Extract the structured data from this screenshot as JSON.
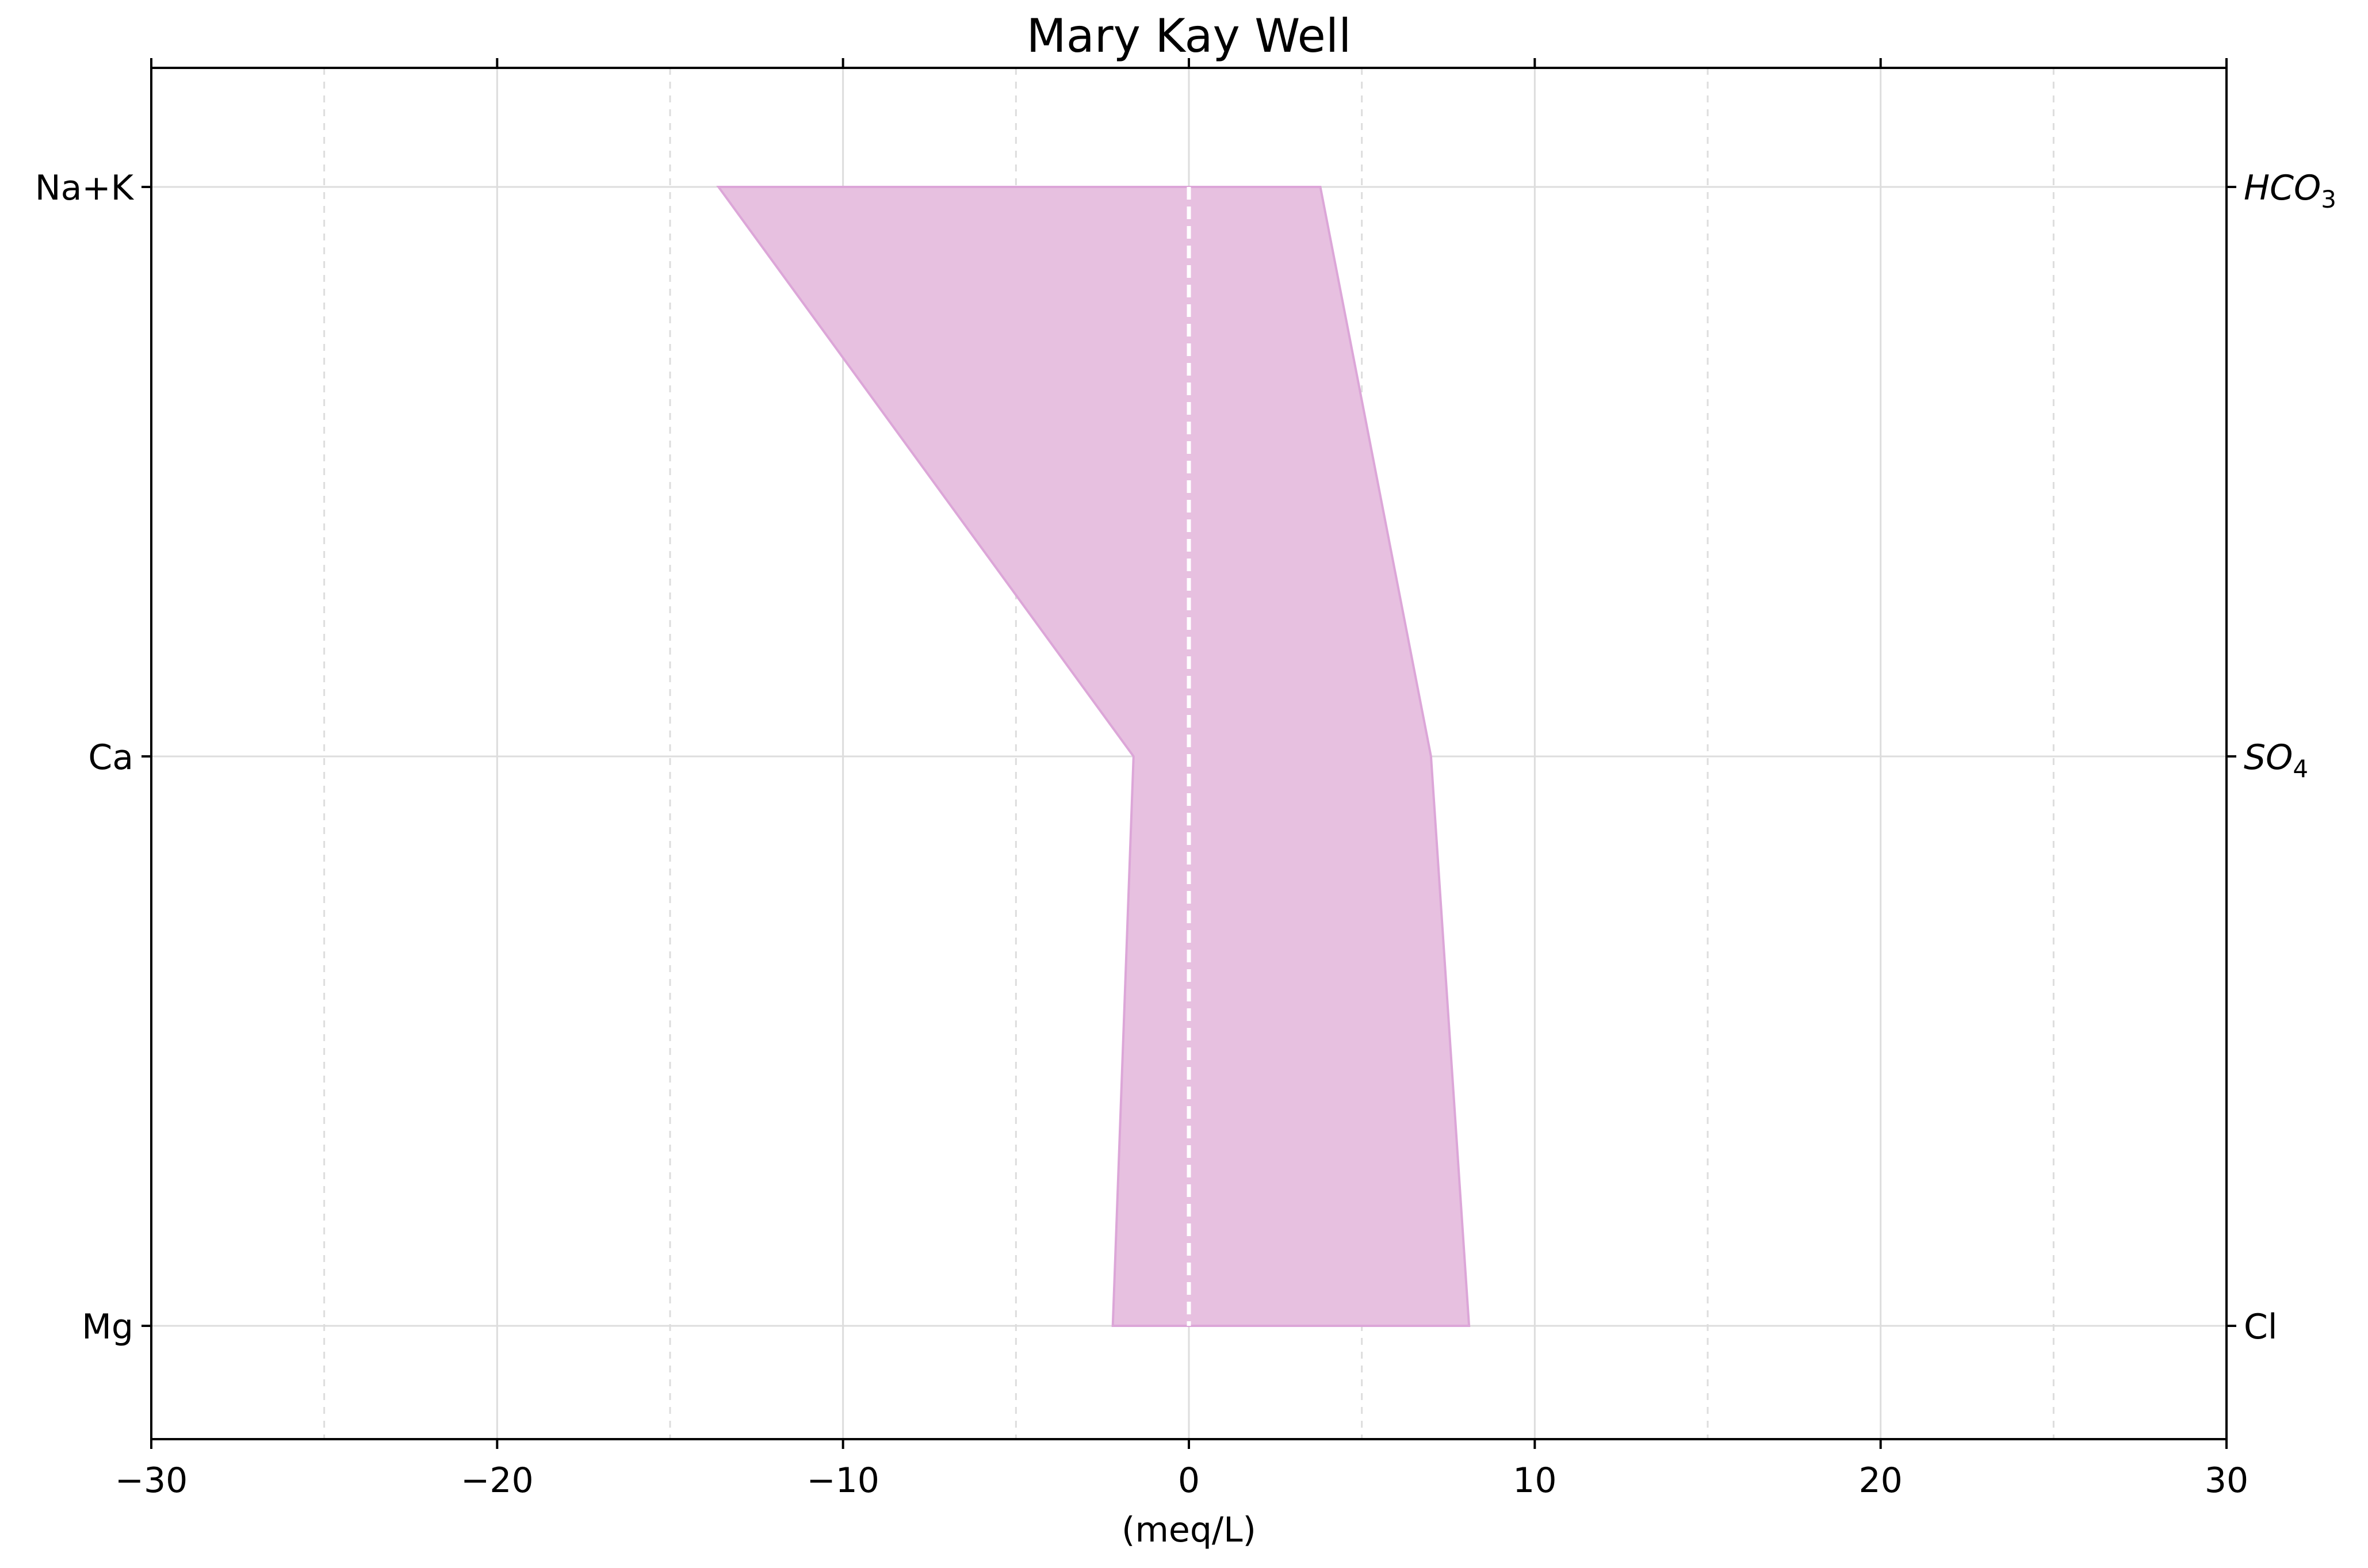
{
  "chart_data": {
    "type": "area",
    "title": "Mary Kay Well",
    "xlabel": "(meq/L)",
    "ylabel": "",
    "xlim": [
      -30,
      30
    ],
    "xticks": [
      -30,
      -20,
      -10,
      0,
      10,
      20,
      30
    ],
    "xtick_labels": [
      "−30",
      "−20",
      "−10",
      "0",
      "10",
      "20",
      "30"
    ],
    "x_minor_ticks": [
      -25,
      -15,
      -5,
      5,
      15,
      25
    ],
    "left_labels": [
      "Na+K",
      "Ca",
      "Mg"
    ],
    "right_labels": [
      {
        "base": "HCO",
        "sub": "3"
      },
      {
        "base": "SO",
        "sub": "4"
      },
      {
        "base": "Cl",
        "sub": ""
      }
    ],
    "cations": {
      "labels": [
        "Na+K",
        "Ca",
        "Mg"
      ],
      "values": [
        13.6,
        1.6,
        2.2
      ]
    },
    "anions": {
      "labels": [
        "HCO3",
        "SO4",
        "Cl"
      ],
      "values": [
        3.8,
        7.0,
        8.1
      ]
    },
    "grid": true,
    "colors": {
      "fill": "#e7c0e0",
      "edge": "#dca6d8",
      "grid": "#dddddd",
      "zero_line": "#ffffff",
      "axis": "#000000"
    }
  }
}
